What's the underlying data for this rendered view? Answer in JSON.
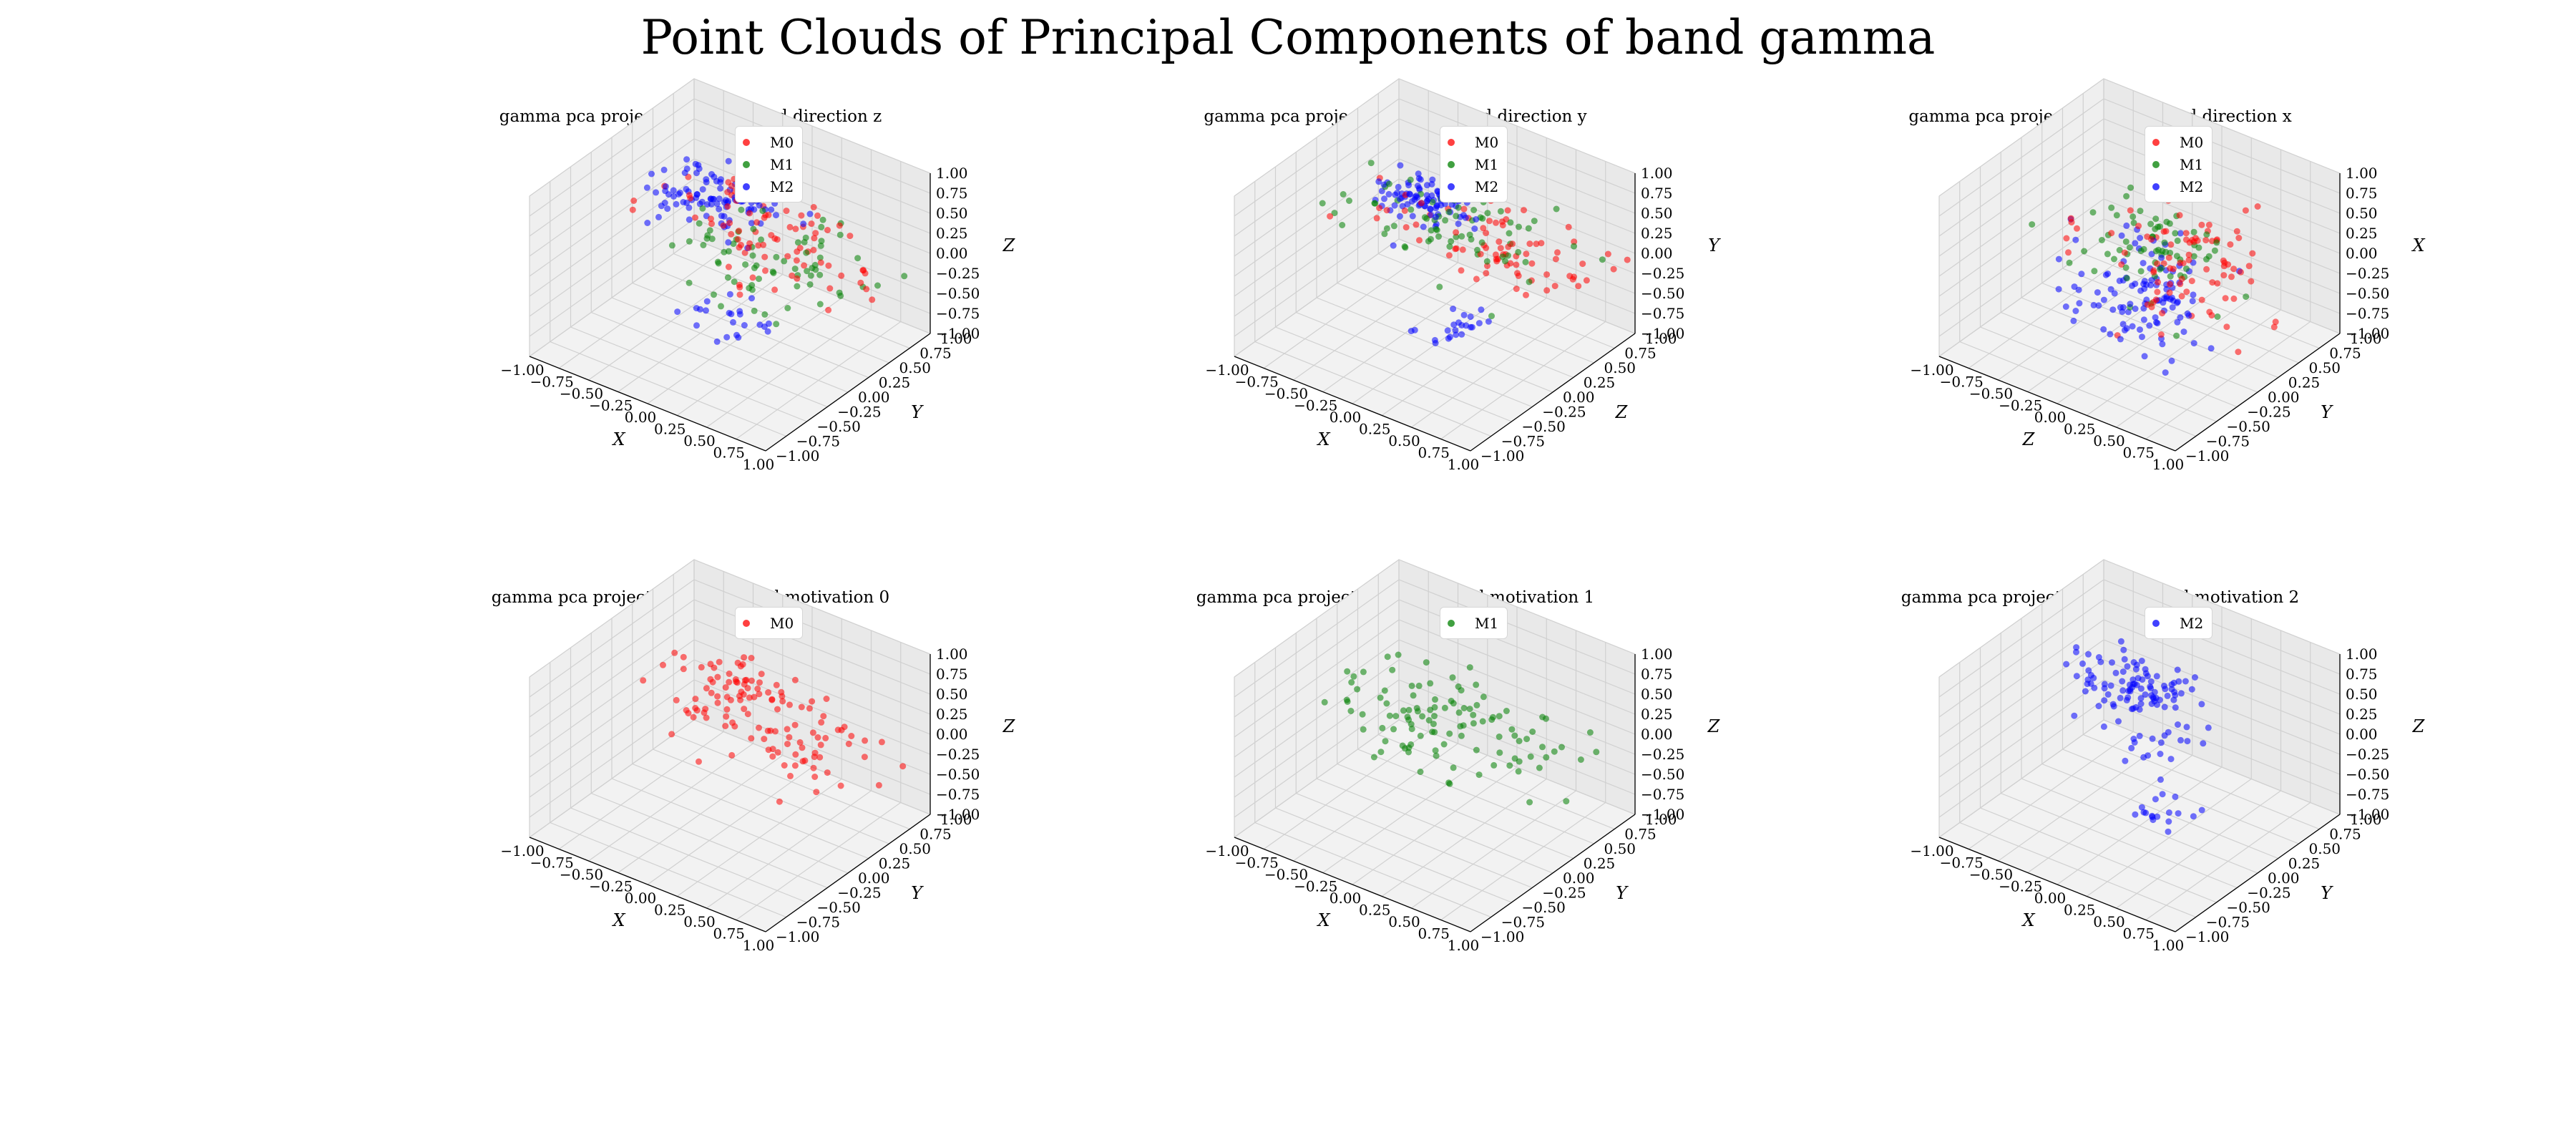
{
  "figure": {
    "title": "Point Clouds of Principal Components of band gamma"
  },
  "colors": {
    "M0": "#ff0000",
    "M1": "#008000",
    "M2": "#0000ff"
  },
  "chart_data": [
    {
      "type": "scatter3d",
      "title": "gamma pca projection Point Cloud direction z",
      "xlabel": "X",
      "ylabel": "Y",
      "zlabel": "Z",
      "xlim": [
        -1,
        1
      ],
      "ylim": [
        -1,
        1
      ],
      "zlim": [
        -1,
        1
      ],
      "ticks": [
        "−1.00",
        "−0.75",
        "−0.50",
        "−0.25",
        "0.00",
        "0.25",
        "0.50",
        "0.75",
        "1.00"
      ],
      "legend": [
        "M0",
        "M1",
        "M2"
      ],
      "grid": true,
      "series": [
        {
          "name": "M0",
          "color": "#ff0000",
          "clusters": [
            {
              "cx": -0.3,
              "cy": 0.6,
              "cz": 0.05,
              "sx": 0.35,
              "sy": 0.2,
              "sz": 0.12,
              "n": 45
            },
            {
              "cx": 0.4,
              "cy": 0.3,
              "cz": 0.05,
              "sx": 0.3,
              "sy": 0.25,
              "sz": 0.12,
              "n": 40
            }
          ]
        },
        {
          "name": "M1",
          "color": "#008000",
          "clusters": [
            {
              "cx": 0.1,
              "cy": 0.3,
              "cz": -0.1,
              "sx": 0.35,
              "sy": 0.3,
              "sz": 0.15,
              "n": 70
            }
          ]
        },
        {
          "name": "M2",
          "color": "#0000ff",
          "clusters": [
            {
              "cx": -0.55,
              "cy": 0.65,
              "cz": 0.0,
              "sx": 0.25,
              "sy": 0.2,
              "sz": 0.1,
              "n": 100
            },
            {
              "cx": 0.2,
              "cy": -0.2,
              "cz": -0.4,
              "sx": 0.15,
              "sy": 0.15,
              "sz": 0.1,
              "n": 22
            }
          ]
        }
      ]
    },
    {
      "type": "scatter3d",
      "title": "gamma pca projection Point Cloud direction y",
      "xlabel": "X",
      "ylabel": "Z",
      "zlabel": "Y",
      "xlim": [
        -1,
        1
      ],
      "ylim": [
        -1,
        1
      ],
      "zlim": [
        -1,
        1
      ],
      "ticks": [
        "−1.00",
        "−0.75",
        "−0.50",
        "−0.25",
        "0.00",
        "0.25",
        "0.50",
        "0.75",
        "1.00"
      ],
      "legend": [
        "M0",
        "M1",
        "M2"
      ],
      "grid": true,
      "series": [
        {
          "name": "M0",
          "color": "#ff0000",
          "clusters": [
            {
              "cx": 0.1,
              "cy": 0.5,
              "cz": 0.0,
              "sx": 0.45,
              "sy": 0.25,
              "sz": 0.12,
              "n": 80
            }
          ]
        },
        {
          "name": "M1",
          "color": "#008000",
          "clusters": [
            {
              "cx": -0.2,
              "cy": 0.5,
              "cz": 0.0,
              "sx": 0.45,
              "sy": 0.25,
              "sz": 0.12,
              "n": 70
            }
          ]
        },
        {
          "name": "M2",
          "color": "#0000ff",
          "clusters": [
            {
              "cx": -0.55,
              "cy": 0.65,
              "cz": 0.05,
              "sx": 0.2,
              "sy": 0.15,
              "sz": 0.1,
              "n": 90
            },
            {
              "cx": 0.4,
              "cy": -0.3,
              "cz": -0.35,
              "sx": 0.15,
              "sy": 0.15,
              "sz": 0.08,
              "n": 22
            }
          ]
        }
      ]
    },
    {
      "type": "scatter3d",
      "title": "gamma pca projection Point Cloud direction x",
      "xlabel": "Z",
      "ylabel": "Y",
      "zlabel": "X",
      "xlim": [
        -1,
        1
      ],
      "ylim": [
        -1,
        1
      ],
      "zlim": [
        -1,
        1
      ],
      "ticks": [
        "−1.00",
        "−0.75",
        "−0.50",
        "−0.25",
        "0.00",
        "0.25",
        "0.50",
        "0.75",
        "1.00"
      ],
      "legend": [
        "M0",
        "M1",
        "M2"
      ],
      "grid": true,
      "series": [
        {
          "name": "M0",
          "color": "#ff0000",
          "clusters": [
            {
              "cx": 0.2,
              "cy": 0.2,
              "cz": 0.05,
              "sx": 0.3,
              "sy": 0.25,
              "sz": 0.35,
              "n": 90
            }
          ]
        },
        {
          "name": "M1",
          "color": "#008000",
          "clusters": [
            {
              "cx": -0.1,
              "cy": 0.3,
              "cz": -0.05,
              "sx": 0.3,
              "sy": 0.25,
              "sz": 0.35,
              "n": 70
            }
          ]
        },
        {
          "name": "M2",
          "color": "#0000ff",
          "clusters": [
            {
              "cx": -0.1,
              "cy": 0.15,
              "cz": -0.5,
              "sx": 0.25,
              "sy": 0.2,
              "sz": 0.3,
              "n": 110
            }
          ]
        }
      ]
    },
    {
      "type": "scatter3d",
      "title": "gamma pca projection Point Cloud motivation 0",
      "xlabel": "X",
      "ylabel": "Y",
      "zlabel": "Z",
      "xlim": [
        -1,
        1
      ],
      "ylim": [
        -1,
        1
      ],
      "zlim": [
        -1,
        1
      ],
      "ticks": [
        "−1.00",
        "−0.75",
        "−0.50",
        "−0.25",
        "0.00",
        "0.25",
        "0.50",
        "0.75",
        "1.00"
      ],
      "legend": [
        "M0"
      ],
      "grid": true,
      "series": [
        {
          "name": "M0",
          "color": "#ff0000",
          "clusters": [
            {
              "cx": -0.35,
              "cy": 0.6,
              "cz": 0.05,
              "sx": 0.3,
              "sy": 0.2,
              "sz": 0.1,
              "n": 70
            },
            {
              "cx": 0.35,
              "cy": 0.3,
              "cz": 0.0,
              "sx": 0.35,
              "sy": 0.25,
              "sz": 0.12,
              "n": 55
            }
          ]
        }
      ]
    },
    {
      "type": "scatter3d",
      "title": "gamma pca projection Point Cloud motivation 1",
      "xlabel": "X",
      "ylabel": "Y",
      "zlabel": "Z",
      "xlim": [
        -1,
        1
      ],
      "ylim": [
        -1,
        1
      ],
      "zlim": [
        -1,
        1
      ],
      "ticks": [
        "−1.00",
        "−0.75",
        "−0.50",
        "−0.25",
        "0.00",
        "0.25",
        "0.50",
        "0.75",
        "1.00"
      ],
      "legend": [
        "M1"
      ],
      "grid": true,
      "series": [
        {
          "name": "M1",
          "color": "#008000",
          "clusters": [
            {
              "cx": -0.05,
              "cy": 0.4,
              "cz": -0.1,
              "sx": 0.45,
              "sy": 0.3,
              "sz": 0.12,
              "n": 110
            }
          ]
        }
      ]
    },
    {
      "type": "scatter3d",
      "title": "gamma pca projection Point Cloud motivation 2",
      "xlabel": "X",
      "ylabel": "Y",
      "zlabel": "Z",
      "xlim": [
        -1,
        1
      ],
      "ylim": [
        -1,
        1
      ],
      "zlim": [
        -1,
        1
      ],
      "ticks": [
        "−1.00",
        "−0.75",
        "−0.50",
        "−0.25",
        "0.00",
        "0.25",
        "0.50",
        "0.75",
        "1.00"
      ],
      "legend": [
        "M2"
      ],
      "grid": true,
      "series": [
        {
          "name": "M2",
          "color": "#0000ff",
          "clusters": [
            {
              "cx": -0.5,
              "cy": 0.65,
              "cz": 0.0,
              "sx": 0.22,
              "sy": 0.18,
              "sz": 0.1,
              "n": 95
            },
            {
              "cx": 0.0,
              "cy": 0.2,
              "cz": -0.1,
              "sx": 0.2,
              "sy": 0.2,
              "sz": 0.1,
              "n": 20
            },
            {
              "cx": 0.45,
              "cy": -0.3,
              "cz": -0.35,
              "sx": 0.12,
              "sy": 0.12,
              "sz": 0.08,
              "n": 18
            }
          ]
        }
      ]
    }
  ]
}
